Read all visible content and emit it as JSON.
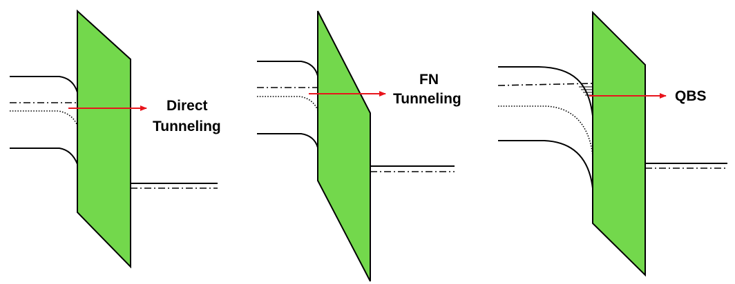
{
  "colors": {
    "barrier_fill": "#73d84c",
    "arrow": "#e8141c",
    "line": "#000000"
  },
  "panels": [
    {
      "label_lines": [
        "Direct",
        "Tunneling"
      ]
    },
    {
      "label_lines": [
        "FN",
        "Tunneling"
      ]
    },
    {
      "label_lines": [
        "QBS"
      ]
    }
  ]
}
